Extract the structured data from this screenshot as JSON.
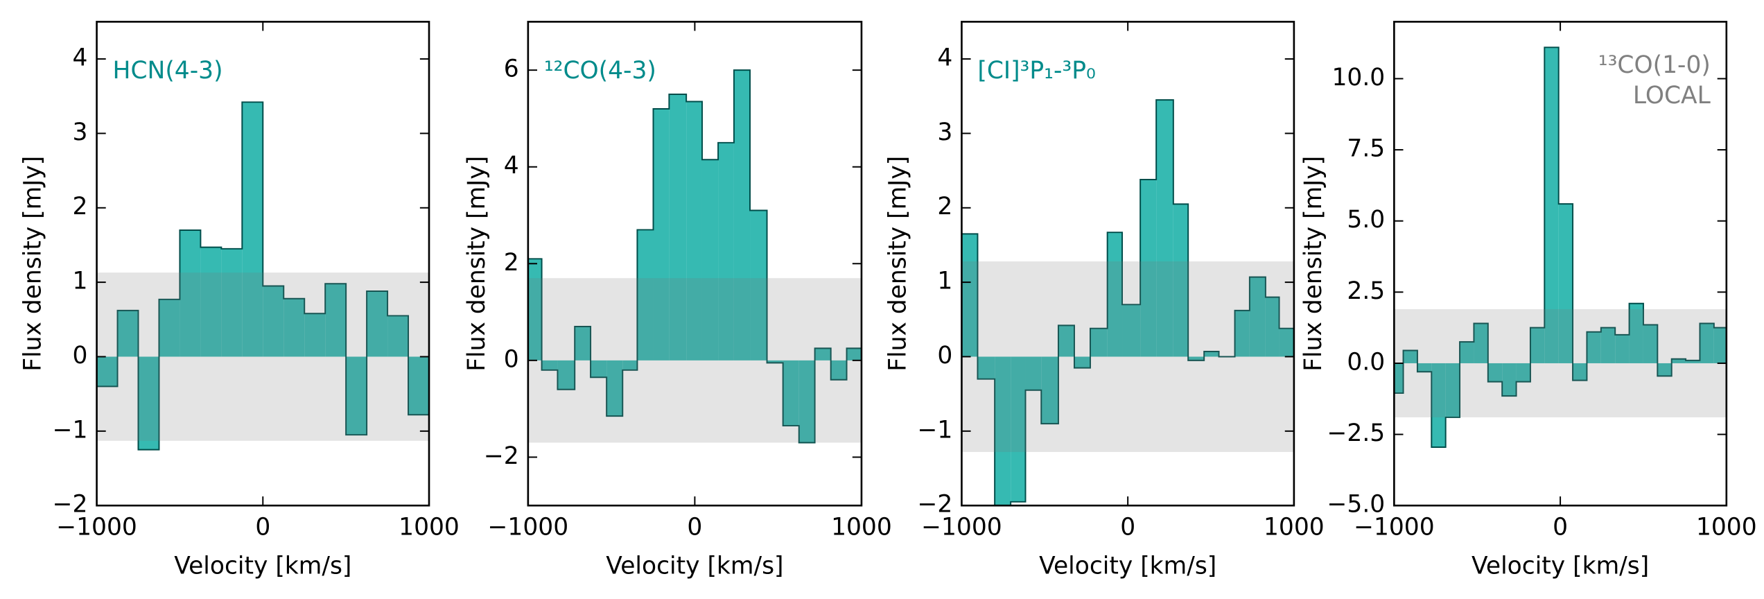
{
  "chart_data": [
    {
      "type": "histogram",
      "label": [
        "HCN(4-3)"
      ],
      "label_color": "#008b8b",
      "label_align": "left",
      "xlabel": "Velocity [km/s]",
      "ylabel": "Flux density [mJy]",
      "bins": [
        -1000,
        -875,
        -750,
        -625,
        -500,
        -375,
        -250,
        -125,
        0,
        125,
        250,
        375,
        500,
        625,
        750,
        875,
        1000
      ],
      "values": [
        -0.4,
        0.62,
        -1.25,
        0.77,
        1.7,
        1.47,
        1.45,
        3.42,
        0.95,
        0.78,
        0.58,
        0.98,
        -1.05,
        0.88,
        0.55,
        -0.78
      ],
      "color": "#20b2aa",
      "edgecolor": "#004d4a",
      "band": 1.13,
      "xlim": [
        -1000,
        1000
      ],
      "xticks": [
        {
          "value": -1000,
          "label": "−1000"
        },
        0,
        1000
      ],
      "ylim": [
        -2,
        4.5
      ],
      "yticks": [
        {
          "value": -2,
          "label": "−2"
        },
        {
          "value": -1,
          "label": "−1"
        },
        0,
        1,
        2,
        3,
        4
      ]
    },
    {
      "type": "histogram",
      "label": [
        "¹²CO(4-3)"
      ],
      "label_color": "#008b8b",
      "label_align": "left",
      "xlabel": "Velocity [km/s]",
      "ylabel": "Flux density [mJy]",
      "bins": [
        -1000,
        -918,
        -823,
        -720,
        -625,
        -529,
        -433,
        -345,
        -249,
        -154,
        -51,
        44,
        140,
        235,
        331,
        433,
        529,
        625,
        720,
        816,
        911,
        1000
      ],
      "values": [
        2.1,
        -0.2,
        -0.6,
        0.7,
        -0.35,
        -1.15,
        -0.2,
        2.7,
        5.2,
        5.5,
        5.35,
        4.15,
        4.5,
        6.0,
        3.1,
        -0.05,
        -1.35,
        -1.7,
        0.25,
        -0.4,
        0.25
      ],
      "color": "#20b2aa",
      "edgecolor": "#004d4a",
      "band": 1.7,
      "xlim": [
        -1000,
        1000
      ],
      "xticks": [
        {
          "value": -1000,
          "label": "−1000"
        },
        0,
        1000
      ],
      "ylim": [
        -3,
        7
      ],
      "yticks": [
        {
          "value": -2,
          "label": "−2"
        },
        0,
        2,
        4,
        6
      ]
    },
    {
      "type": "histogram",
      "label": [
        "[CI]³P₁-³P₀"
      ],
      "label_color": "#008b8b",
      "label_align": "left",
      "xlabel": "Velocity [km/s]",
      "ylabel": "Flux density [mJy]",
      "bins": [
        -1000,
        -904,
        -801,
        -705,
        -616,
        -521,
        -418,
        -322,
        -226,
        -123,
        -34,
        75,
        171,
        274,
        363,
        459,
        548,
        644,
        733,
        829,
        911,
        1000
      ],
      "values": [
        1.65,
        -0.3,
        -2.1,
        -1.95,
        -0.45,
        -0.9,
        0.42,
        -0.15,
        0.38,
        1.67,
        0.7,
        2.38,
        3.45,
        2.05,
        -0.05,
        0.07,
        0.0,
        0.62,
        1.07,
        0.8,
        0.38
      ],
      "color": "#20b2aa",
      "edgecolor": "#004d4a",
      "band": 1.28,
      "xlim": [
        -1000,
        1000
      ],
      "xticks": [
        {
          "value": -1000,
          "label": "−1000"
        },
        0,
        1000
      ],
      "ylim": [
        -2,
        4.5
      ],
      "yticks": [
        {
          "value": -2,
          "label": "−2"
        },
        {
          "value": -1,
          "label": "−1"
        },
        0,
        1,
        2,
        3,
        4
      ]
    },
    {
      "type": "histogram",
      "label": [
        "¹³CO(1-0)",
        "LOCAL"
      ],
      "label_color": "#808080",
      "label_align": "right",
      "xlabel": "Velocity [km/s]",
      "ylabel": "Flux density [mJy]",
      "bins": [
        -1000,
        -945,
        -860,
        -775,
        -690,
        -605,
        -520,
        -435,
        -350,
        -265,
        -180,
        -95,
        -10,
        75,
        160,
        245,
        330,
        415,
        500,
        585,
        670,
        755,
        840,
        925,
        1000
      ],
      "values": [
        -1.05,
        0.45,
        -0.3,
        -2.95,
        -1.9,
        0.75,
        1.4,
        -0.65,
        -1.15,
        -0.65,
        1.25,
        11.1,
        5.6,
        -0.6,
        1.1,
        1.25,
        1.0,
        2.1,
        1.35,
        -0.45,
        0.15,
        0.1,
        1.4,
        1.25
      ],
      "color": "#20b2aa",
      "edgecolor": "#004d4a",
      "band": 1.9,
      "xlim": [
        -1000,
        1000
      ],
      "xticks": [
        {
          "value": -1000,
          "label": "−1000"
        },
        0,
        1000
      ],
      "ylim": [
        -5,
        12
      ],
      "yticks": [
        {
          "value": -5,
          "label": "−5.0"
        },
        {
          "value": -2.5,
          "label": "−2.5"
        },
        {
          "value": 0,
          "label": "0.0"
        },
        {
          "value": 2.5,
          "label": "2.5"
        },
        {
          "value": 5,
          "label": "5.0"
        },
        {
          "value": 7.5,
          "label": "7.5"
        },
        {
          "value": 10,
          "label": "10.0"
        }
      ]
    }
  ]
}
